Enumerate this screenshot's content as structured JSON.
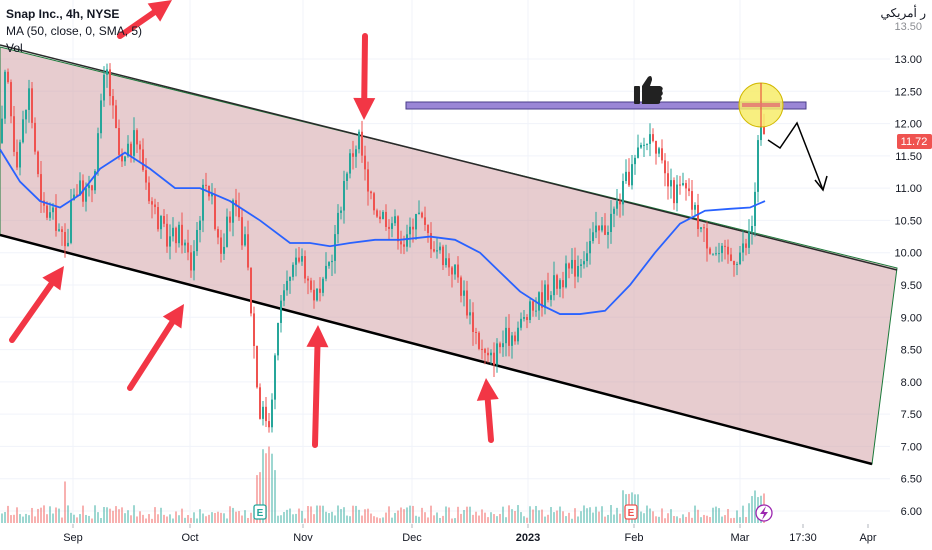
{
  "legend": {
    "symbol": "Snap Inc., 4h, NYSE",
    "ma": "MA (50, close, 0, SMA, 5)",
    "vol": "Vol"
  },
  "top_right_label": "ر أمريكي",
  "last_price_label": "11.72",
  "time_label": "17:30",
  "icons": [
    "thumbs-up-icon",
    "earnings-e-icon",
    "dividend-lightning-icon"
  ],
  "colors": {
    "up": "#26a69a",
    "down": "#ef5350",
    "ma": "#2962ff",
    "channel_fill": "#d9a8ae",
    "arrow": "#f23645",
    "resistance": "#8a7ccc",
    "highlight": "#f5e663"
  },
  "chart_data": {
    "type": "candlestick",
    "title": "Snap Inc., 4h, NYSE",
    "ylim": [
      5.9,
      13.65
    ],
    "y_ticks": [
      "13.00",
      "12.50",
      "12.00",
      "11.50",
      "11.00",
      "10.50",
      "10.00",
      "9.50",
      "9.00",
      "8.50",
      "8.00",
      "7.50",
      "7.00",
      "6.50",
      "6.00"
    ],
    "x_ticks": [
      "Sep",
      "Oct",
      "Nov",
      "Dec",
      "2023",
      "Feb",
      "Mar",
      "17:30",
      "Apr"
    ],
    "price_path": [
      [
        0,
        11.7
      ],
      [
        5,
        12.9
      ],
      [
        15,
        11.4
      ],
      [
        28,
        12.5
      ],
      [
        40,
        10.7
      ],
      [
        55,
        10.5
      ],
      [
        65,
        10.0
      ],
      [
        72,
        11.0
      ],
      [
        90,
        10.9
      ],
      [
        105,
        12.9
      ],
      [
        120,
        11.3
      ],
      [
        135,
        11.8
      ],
      [
        150,
        10.8
      ],
      [
        165,
        10.2
      ],
      [
        180,
        10.3
      ],
      [
        190,
        9.8
      ],
      [
        205,
        11.2
      ],
      [
        220,
        10.1
      ],
      [
        232,
        10.7
      ],
      [
        245,
        10.1
      ],
      [
        258,
        7.6
      ],
      [
        268,
        7.4
      ],
      [
        278,
        9.0
      ],
      [
        290,
        9.6
      ],
      [
        300,
        10.0
      ],
      [
        310,
        9.4
      ],
      [
        320,
        9.3
      ],
      [
        335,
        10.3
      ],
      [
        345,
        11.3
      ],
      [
        358,
        11.8
      ],
      [
        368,
        10.8
      ],
      [
        380,
        10.6
      ],
      [
        392,
        10.5
      ],
      [
        405,
        10.1
      ],
      [
        415,
        10.7
      ],
      [
        425,
        10.3
      ],
      [
        440,
        10.0
      ],
      [
        455,
        9.7
      ],
      [
        470,
        9.0
      ],
      [
        480,
        8.5
      ],
      [
        488,
        8.3
      ],
      [
        500,
        8.6
      ],
      [
        515,
        8.8
      ],
      [
        530,
        9.1
      ],
      [
        545,
        9.4
      ],
      [
        560,
        9.6
      ],
      [
        575,
        9.8
      ],
      [
        590,
        10.2
      ],
      [
        605,
        10.4
      ],
      [
        615,
        10.7
      ],
      [
        628,
        11.2
      ],
      [
        640,
        11.6
      ],
      [
        652,
        11.9
      ],
      [
        662,
        11.2
      ],
      [
        672,
        10.9
      ],
      [
        682,
        11.0
      ],
      [
        692,
        10.7
      ],
      [
        702,
        10.3
      ],
      [
        715,
        10.0
      ],
      [
        730,
        9.9
      ],
      [
        745,
        10.1
      ],
      [
        752,
        10.5
      ],
      [
        758,
        11.9
      ],
      [
        765,
        11.7
      ]
    ],
    "ma_series": {
      "name": "MA (50, close, 0, SMA, 5)",
      "points": [
        [
          0,
          11.6
        ],
        [
          20,
          11.1
        ],
        [
          40,
          10.8
        ],
        [
          60,
          10.7
        ],
        [
          80,
          10.9
        ],
        [
          100,
          11.3
        ],
        [
          125,
          11.55
        ],
        [
          150,
          11.3
        ],
        [
          175,
          11.0
        ],
        [
          200,
          11.0
        ],
        [
          230,
          10.8
        ],
        [
          260,
          10.5
        ],
        [
          290,
          10.15
        ],
        [
          310,
          10.15
        ],
        [
          330,
          10.1
        ],
        [
          350,
          10.15
        ],
        [
          375,
          10.2
        ],
        [
          400,
          10.2
        ],
        [
          430,
          10.25
        ],
        [
          455,
          10.2
        ],
        [
          480,
          10.0
        ],
        [
          500,
          9.7
        ],
        [
          520,
          9.4
        ],
        [
          540,
          9.2
        ],
        [
          560,
          9.05
        ],
        [
          580,
          9.05
        ],
        [
          605,
          9.1
        ],
        [
          630,
          9.5
        ],
        [
          655,
          10.0
        ],
        [
          680,
          10.45
        ],
        [
          705,
          10.65
        ],
        [
          730,
          10.68
        ],
        [
          750,
          10.7
        ],
        [
          765,
          10.8
        ]
      ]
    },
    "channel": {
      "upper": [
        [
          0,
          13.05
        ],
        [
          897,
          9.65
        ]
      ],
      "lower": [
        [
          0,
          10.25
        ],
        [
          872,
          6.8
        ]
      ]
    },
    "resistance_level": 12.3,
    "volume": "relative bars along bottom"
  }
}
